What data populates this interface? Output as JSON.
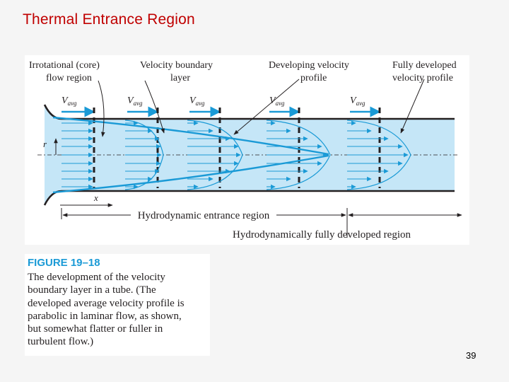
{
  "slide": {
    "title": "Thermal Entrance Region",
    "page_number": "39"
  },
  "figure": {
    "labels": {
      "irrotational_core_line1": "Irrotational (core)",
      "irrotational_core_line2": "flow region",
      "velocity_bl_line1": "Velocity boundary",
      "velocity_bl_line2": "layer",
      "developing_line1": "Developing velocity",
      "developing_line2": "profile",
      "fully_developed_line1": "Fully developed",
      "fully_developed_line2": "velocity profile",
      "v_symbol": "V",
      "v_subscript": "avg",
      "r_axis": "r",
      "x_axis": "x",
      "hydro_entrance": "Hydrodynamic entrance region",
      "hydro_fully_developed": "Hydrodynamically fully developed region"
    },
    "colors": {
      "tube_fill": "#c5e6f7",
      "accent_blue": "#1a9ad6",
      "dark_line": "#231f20"
    }
  },
  "caption": {
    "heading": "FIGURE 19–18",
    "lines": [
      "The development of the velocity",
      "boundary layer in a tube. (The",
      "developed average velocity profile is",
      "parabolic in laminar flow, as shown,",
      "but somewhat flatter or fuller in",
      "turbulent flow.)"
    ]
  }
}
